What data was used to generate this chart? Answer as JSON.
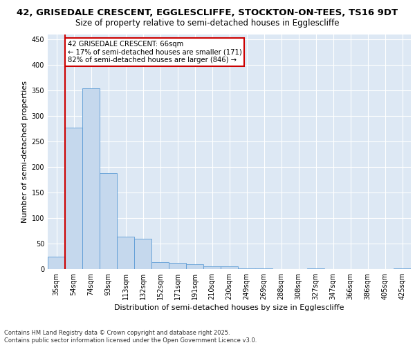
{
  "title_line1": "42, GRISEDALE CRESCENT, EGGLESCLIFFE, STOCKTON-ON-TEES, TS16 9DT",
  "title_line2": "Size of property relative to semi-detached houses in Egglescliffe",
  "xlabel": "Distribution of semi-detached houses by size in Egglescliffe",
  "ylabel": "Number of semi-detached properties",
  "categories": [
    "35sqm",
    "54sqm",
    "74sqm",
    "93sqm",
    "113sqm",
    "132sqm",
    "152sqm",
    "171sqm",
    "191sqm",
    "210sqm",
    "230sqm",
    "249sqm",
    "269sqm",
    "288sqm",
    "308sqm",
    "327sqm",
    "347sqm",
    "366sqm",
    "386sqm",
    "405sqm",
    "425sqm"
  ],
  "values": [
    25,
    278,
    355,
    188,
    63,
    60,
    13,
    12,
    9,
    5,
    5,
    1,
    1,
    0,
    0,
    2,
    0,
    0,
    0,
    0,
    2
  ],
  "bar_color": "#c5d8ed",
  "bar_edge_color": "#5b9bd5",
  "annotation_title": "42 GRISEDALE CRESCENT: 66sqm",
  "annotation_line2": "← 17% of semi-detached houses are smaller (171)",
  "annotation_line3": "82% of semi-detached houses are larger (846) →",
  "annotation_box_color": "#ffffff",
  "annotation_box_edge": "#cc0000",
  "vline_color": "#cc0000",
  "vline_x": 0.5,
  "ylim": [
    0,
    460
  ],
  "yticks": [
    0,
    50,
    100,
    150,
    200,
    250,
    300,
    350,
    400,
    450
  ],
  "background_color": "#dde8f4",
  "footer_line1": "Contains HM Land Registry data © Crown copyright and database right 2025.",
  "footer_line2": "Contains public sector information licensed under the Open Government Licence v3.0.",
  "title_fontsize": 9.5,
  "subtitle_fontsize": 8.5,
  "axis_label_fontsize": 8,
  "tick_fontsize": 7,
  "footer_fontsize": 6
}
